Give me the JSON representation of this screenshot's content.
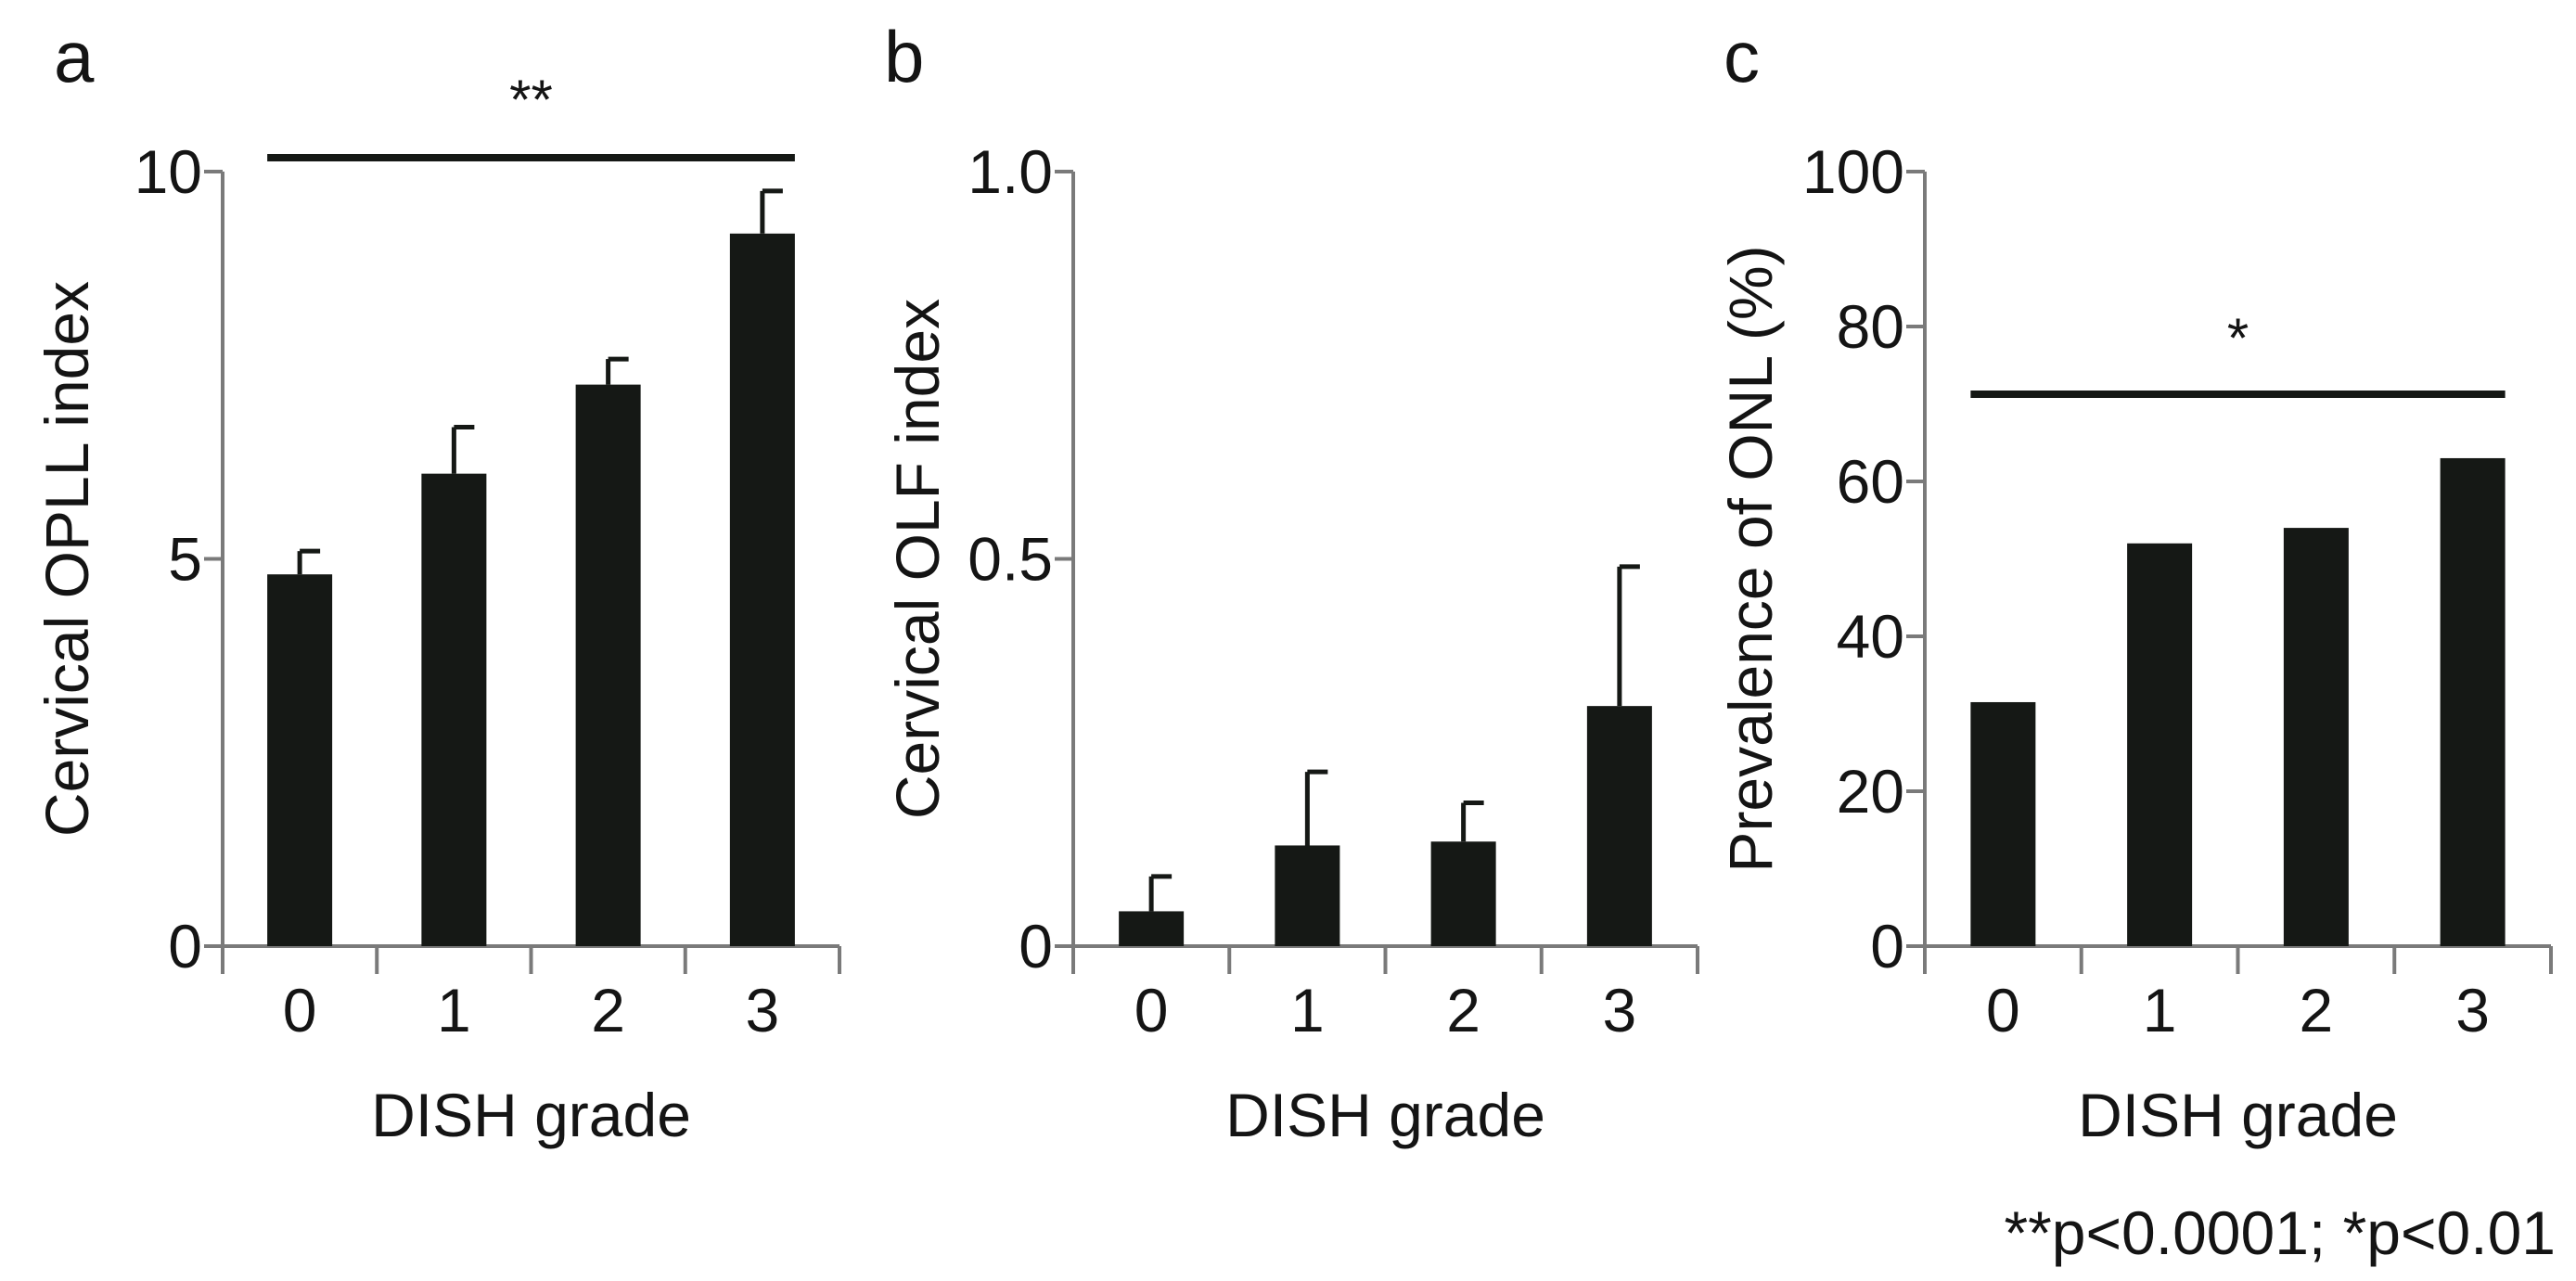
{
  "chart_data": [
    {
      "panel": "a",
      "type": "bar",
      "title": "",
      "xlabel": "DISH grade",
      "ylabel": "Cervical OPLL index",
      "categories": [
        "0",
        "1",
        "2",
        "3"
      ],
      "values": [
        4.8,
        6.1,
        7.25,
        9.2
      ],
      "errors": [
        0.3,
        0.6,
        0.33,
        0.55
      ],
      "ylim": [
        0,
        10
      ],
      "yticks": [
        0,
        5,
        10
      ],
      "ytick_labels": [
        "0",
        "5",
        "10"
      ],
      "significance": {
        "label": "**",
        "from": "0",
        "to": "3"
      }
    },
    {
      "panel": "b",
      "type": "bar",
      "title": "",
      "xlabel": "DISH grade",
      "ylabel": "Cervical OLF index",
      "categories": [
        "0",
        "1",
        "2",
        "3"
      ],
      "values": [
        0.045,
        0.13,
        0.135,
        0.31
      ],
      "errors": [
        0.045,
        0.095,
        0.05,
        0.18
      ],
      "ylim": [
        0,
        1.0
      ],
      "yticks": [
        0,
        0.5,
        1.0
      ],
      "ytick_labels": [
        "0",
        "0.5",
        "1.0"
      ]
    },
    {
      "panel": "c",
      "type": "bar",
      "title": "",
      "xlabel": "DISH grade",
      "ylabel": "Prevalence of ONL (%)",
      "categories": [
        "0",
        "1",
        "2",
        "3"
      ],
      "values": [
        31.5,
        52,
        54,
        63
      ],
      "errors": [
        0,
        0,
        0,
        0
      ],
      "ylim": [
        0,
        100
      ],
      "yticks": [
        0,
        20,
        40,
        60,
        80,
        100
      ],
      "ytick_labels": [
        "0",
        "20",
        "40",
        "60",
        "80",
        "100"
      ],
      "significance": {
        "label": "*",
        "from": "0",
        "to": "3"
      }
    }
  ],
  "footnote": "**p<0.0001; *p<0.01"
}
